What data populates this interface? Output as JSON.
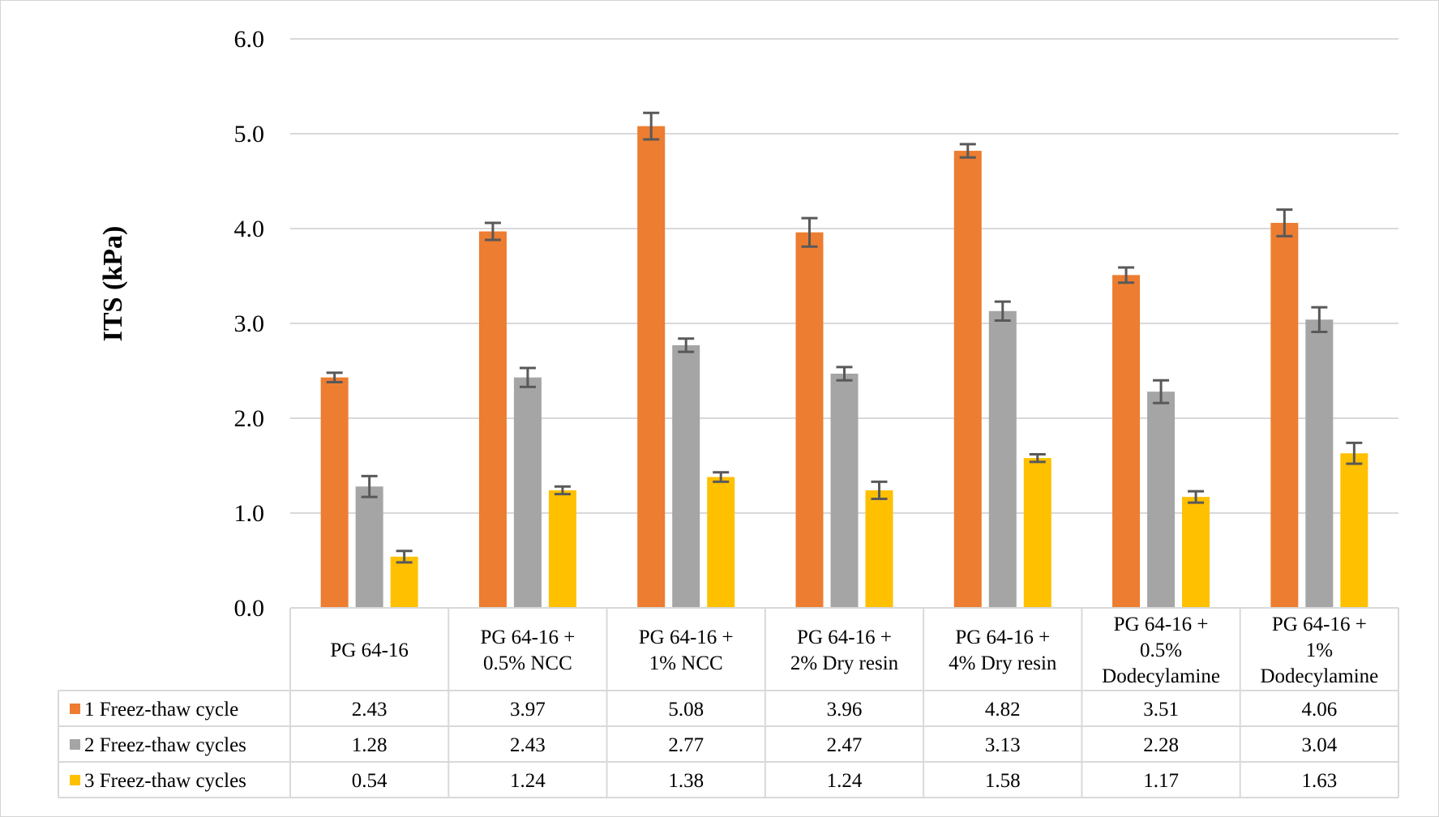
{
  "chart_data": {
    "type": "bar",
    "ylabel": "ITS (kPa)",
    "ylim": [
      0,
      6
    ],
    "yticks": [
      "0.0",
      "1.0",
      "2.0",
      "3.0",
      "4.0",
      "5.0",
      "6.0"
    ],
    "categories": [
      [
        "PG 64-16"
      ],
      [
        "PG 64-16 +",
        "0.5% NCC"
      ],
      [
        "PG 64-16 +",
        "1% NCC"
      ],
      [
        "PG 64-16 +",
        "2% Dry resin"
      ],
      [
        "PG 64-16 +",
        "4% Dry resin"
      ],
      [
        "PG 64-16 +",
        "0.5%",
        "Dodecylamine"
      ],
      [
        "PG 64-16 +",
        "1%",
        "Dodecylamine"
      ]
    ],
    "series": [
      {
        "name": "1 Freez-thaw cycle",
        "color": "#ED7D31",
        "values": [
          2.43,
          3.97,
          5.08,
          3.96,
          4.82,
          3.51,
          4.06
        ],
        "labels": [
          "2.43",
          "3.97",
          "5.08",
          "3.96",
          "4.82",
          "3.51",
          "4.06"
        ],
        "errors": [
          0.05,
          0.09,
          0.14,
          0.15,
          0.07,
          0.08,
          0.14
        ]
      },
      {
        "name": "2 Freez-thaw cycles",
        "color": "#A5A5A5",
        "values": [
          1.28,
          2.43,
          2.77,
          2.47,
          3.13,
          2.28,
          3.04
        ],
        "labels": [
          "1.28",
          "2.43",
          "2.77",
          "2.47",
          "3.13",
          "2.28",
          "3.04"
        ],
        "errors": [
          0.11,
          0.1,
          0.07,
          0.07,
          0.1,
          0.12,
          0.13
        ]
      },
      {
        "name": "3 Freez-thaw cycles",
        "color": "#FFC000",
        "values": [
          0.54,
          1.24,
          1.38,
          1.24,
          1.58,
          1.17,
          1.63
        ],
        "labels": [
          "0.54",
          "1.24",
          "1.38",
          "1.24",
          "1.58",
          "1.17",
          "1.63"
        ],
        "errors": [
          0.06,
          0.04,
          0.05,
          0.09,
          0.04,
          0.06,
          0.11
        ]
      }
    ],
    "grid": true,
    "data_table": true
  }
}
